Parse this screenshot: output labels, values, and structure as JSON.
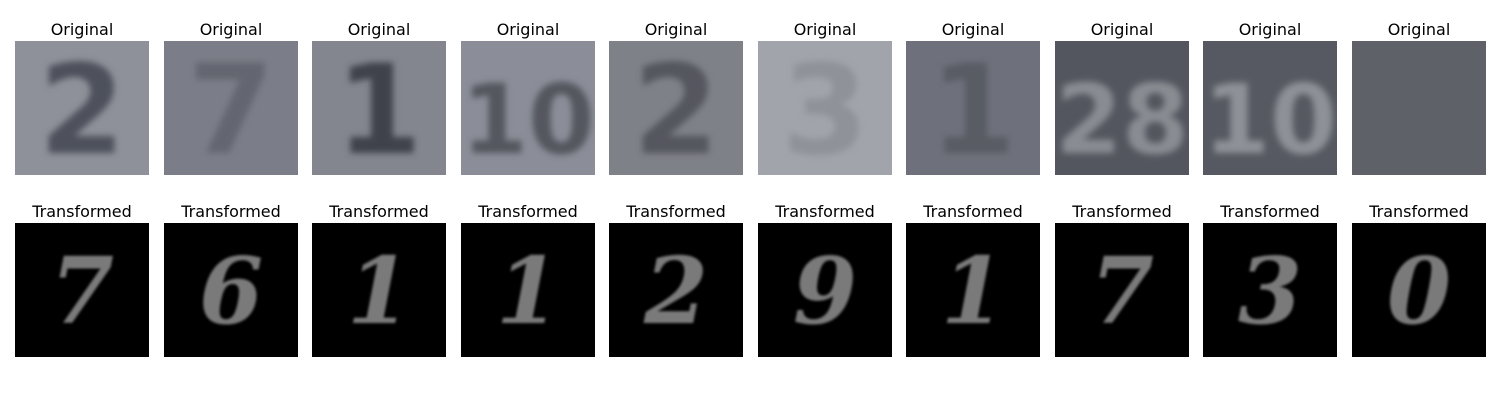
{
  "figure": {
    "rows": [
      {
        "caption": "Original",
        "panels": [
          {
            "label": "2",
            "bg": "#8e9199",
            "fg": "#4e515b"
          },
          {
            "label": "7",
            "bg": "#7b7e88",
            "fg": "#636670"
          },
          {
            "label": "1",
            "bg": "#83868f",
            "fg": "#3f424b"
          },
          {
            "label": "10",
            "bg": "#8b8e98",
            "fg": "#54575f"
          },
          {
            "label": "2",
            "bg": "#7f8189",
            "fg": "#55575e"
          },
          {
            "label": "3",
            "bg": "#a1a4aa",
            "fg": "#8f9298"
          },
          {
            "label": "1",
            "bg": "#6e717b",
            "fg": "#585b64"
          },
          {
            "label": "28",
            "bg": "#54565f",
            "fg": "#8a8c93"
          },
          {
            "label": "10",
            "bg": "#565961",
            "fg": "#8e9198"
          },
          {
            "label": "",
            "bg": "#5f6169",
            "fg": "#686a72"
          }
        ]
      },
      {
        "caption": "Transformed",
        "panels": [
          {
            "label": "7",
            "bg": "#000000",
            "fg": "#7a7a7a"
          },
          {
            "label": "6",
            "bg": "#000000",
            "fg": "#7a7a7a"
          },
          {
            "label": "1",
            "bg": "#000000",
            "fg": "#7a7a7a"
          },
          {
            "label": "1",
            "bg": "#000000",
            "fg": "#7a7a7a"
          },
          {
            "label": "2",
            "bg": "#000000",
            "fg": "#7a7a7a"
          },
          {
            "label": "9",
            "bg": "#000000",
            "fg": "#7a7a7a"
          },
          {
            "label": "1",
            "bg": "#000000",
            "fg": "#7a7a7a"
          },
          {
            "label": "7",
            "bg": "#000000",
            "fg": "#7a7a7a"
          },
          {
            "label": "3",
            "bg": "#000000",
            "fg": "#7a7a7a"
          },
          {
            "label": "0",
            "bg": "#000000",
            "fg": "#7a7a7a"
          }
        ]
      }
    ]
  }
}
